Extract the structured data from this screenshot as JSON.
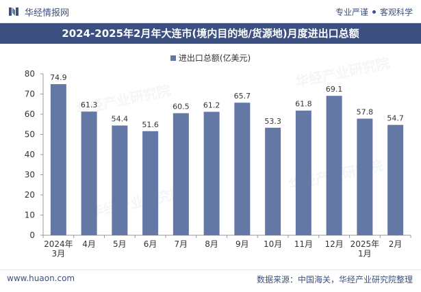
{
  "header": {
    "logo_text": "华经情报网",
    "tagline_left": "专业严谨",
    "tagline_right": "客观科学"
  },
  "title": "2024-2025年2月年大连市(境内目的地/货源地)月度进出口总额",
  "footer": {
    "website": "www.huaon.com",
    "source": "数据来源：中国海关，华经产业研究院整理"
  },
  "watermark": "华经产业研究院",
  "colors": {
    "bar": "#6478a6",
    "title_bg": "#3b4f81",
    "accent": "#3d4f7d"
  },
  "chart_data": {
    "type": "bar",
    "title": "2024-2025年2月年大连市(境内目的地/货源地)月度进出口总额",
    "series": [
      {
        "name": "进出口总额(亿美元)",
        "values": [
          74.9,
          61.3,
          54.4,
          51.6,
          60.5,
          61.2,
          65.7,
          53.3,
          61.8,
          69.1,
          57.8,
          54.7
        ]
      }
    ],
    "categories": [
      [
        "2024年",
        "3月"
      ],
      [
        "4月"
      ],
      [
        "5月"
      ],
      [
        "6月"
      ],
      [
        "7月"
      ],
      [
        "8月"
      ],
      [
        "9月"
      ],
      [
        "10月"
      ],
      [
        "11月"
      ],
      [
        "12月"
      ],
      [
        "2025年",
        "1月"
      ],
      [
        "2月"
      ]
    ],
    "ylim": [
      0,
      80
    ],
    "yticks": [
      0,
      10,
      20,
      30,
      40,
      50,
      60,
      70,
      80
    ],
    "legend_position": "top-center",
    "grid": false
  }
}
